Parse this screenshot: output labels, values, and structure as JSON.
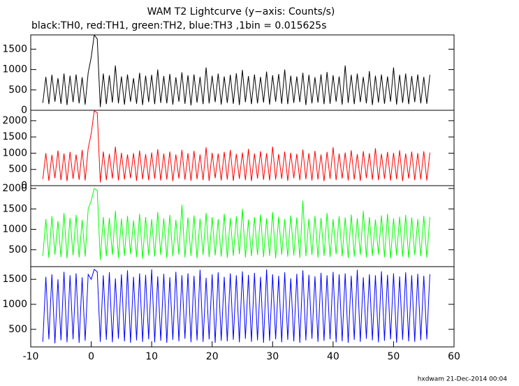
{
  "chart_data": {
    "type": "line",
    "title": "WAM T2 Lightcurve (y−axis: Counts/s)",
    "subtitle": "black:TH0, red:TH1, green:TH2, blue:TH3 ,1bin = 0.015625s",
    "footer": "hxdwam 21-Dec-2014 00:04",
    "xlim": [
      -10,
      60
    ],
    "xticks": [
      -10,
      0,
      10,
      20,
      30,
      40,
      50,
      60
    ],
    "x": [
      -8,
      -7.5,
      -7,
      -6.5,
      -6,
      -5.5,
      -5,
      -4.5,
      -4,
      -3.5,
      -3,
      -2.5,
      -2,
      -1.5,
      -1,
      -0.5,
      0,
      0.5,
      1,
      1.5,
      2,
      2.5,
      3,
      3.5,
      4,
      4.5,
      5,
      5.5,
      6,
      6.5,
      7,
      7.5,
      8,
      8.5,
      9,
      9.5,
      10,
      10.5,
      11,
      11.5,
      12,
      12.5,
      13,
      13.5,
      14,
      14.5,
      15,
      15.5,
      16,
      16.5,
      17,
      17.5,
      18,
      18.5,
      19,
      19.5,
      20,
      20.5,
      21,
      21.5,
      22,
      22.5,
      23,
      23.5,
      24,
      24.5,
      25,
      25.5,
      26,
      26.5,
      27,
      27.5,
      28,
      28.5,
      29,
      29.5,
      30,
      30.5,
      31,
      31.5,
      32,
      32.5,
      33,
      33.5,
      34,
      34.5,
      35,
      35.5,
      36,
      36.5,
      37,
      37.5,
      38,
      38.5,
      39,
      39.5,
      40,
      40.5,
      41,
      41.5,
      42,
      42.5,
      43,
      43.5,
      44,
      44.5,
      45,
      45.5,
      46,
      46.5,
      47,
      47.5,
      48,
      48.5,
      49,
      49.5,
      50,
      50.5,
      51,
      51.5,
      52,
      52.5,
      53,
      53.5,
      54,
      54.5,
      55,
      55.5,
      56
    ],
    "panels": [
      {
        "ylim": [
          0,
          1850
        ],
        "yticks": [
          0,
          500,
          1000,
          1500
        ],
        "series": [
          {
            "color": "#000000",
            "values": [
              180,
              820,
              150,
              870,
              210,
              790,
              160,
              900,
              130,
              850,
              200,
              880,
              170,
              810,
              140,
              920,
              1300,
              1850,
              1750,
              80,
              900,
              150,
              860,
              190,
              1100,
              170,
              830,
              140,
              880,
              210,
              790,
              160,
              920,
              130,
              850,
              200,
              870,
              150,
              1000,
              180,
              840,
              170,
              890,
              140,
              810,
              210,
              930,
              160,
              860,
              120,
              880,
              190,
              820,
              150,
              1050,
              170,
              850,
              200,
              900,
              140,
              830,
              180,
              870,
              160,
              910,
              130,
              990,
              200,
              840,
              150,
              880,
              170,
              820,
              190,
              950,
              140,
              860,
              210,
              890,
              160,
              1000,
              150,
              850,
              180,
              830,
              200,
              920,
              130,
              870,
              170,
              810,
              190,
              880,
              150,
              940,
              160,
              860,
              210,
              830,
              140,
              1100,
              180,
              870,
              150,
              900,
              200,
              820,
              170,
              960,
              130,
              850,
              190,
              880,
              160,
              830,
              210,
              1050,
              140,
              870,
              180,
              900,
              150,
              840,
              200,
              880,
              170,
              820,
              160,
              870
            ]
          }
        ]
      },
      {
        "ylim": [
          0,
          2320
        ],
        "yticks": [
          0,
          500,
          1000,
          1500,
          2000
        ],
        "series": [
          {
            "color": "#ff0000",
            "values": [
              200,
              1000,
              150,
              950,
              230,
              1080,
              170,
              990,
              140,
              1040,
              210,
              960,
              180,
              1100,
              160,
              1150,
              1600,
              2300,
              2250,
              100,
              1050,
              170,
              980,
              220,
              1200,
              160,
              1010,
              190,
              960,
              230,
              1000,
              150,
              1080,
              200,
              970,
              170,
              1020,
              210,
              1120,
              160,
              990,
              190,
              1050,
              140,
              960,
              220,
              1100,
              180,
              1000,
              150,
              1070,
              200,
              960,
              170,
              1180,
              150,
              1010,
              230,
              990,
              160,
              1040,
              190,
              1100,
              150,
              980,
              210,
              1020,
              170,
              1130,
              140,
              990,
              220,
              1060,
              180,
              1000,
              160,
              1200,
              190,
              970,
              210,
              1050,
              150,
              1010,
              230,
              980,
              170,
              1110,
              200,
              1000,
              160,
              1070,
              190,
              960,
              140,
              1040,
              210,
              1180,
              170,
              990,
              220,
              1020,
              160,
              1090,
              190,
              970,
              150,
              1060,
              230,
              1000,
              180,
              1150,
              170,
              980,
              210,
              1040,
              160,
              1010,
              200,
              1090,
              140,
              990,
              220,
              1050,
              170,
              1000,
              190,
              1060,
              160,
              1020
            ]
          }
        ]
      },
      {
        "ylim": [
          86,
          2069
        ],
        "yticks": [
          500,
          1000,
          1500,
          2000
        ],
        "series": [
          {
            "color": "#00ff00",
            "values": [
              350,
              1250,
              300,
              1320,
              380,
              1200,
              320,
              1400,
              290,
              1280,
              360,
              1350,
              310,
              1230,
              330,
              1500,
              1700,
              2000,
              1950,
              250,
              1300,
              340,
              1280,
              370,
              1450,
              300,
              1260,
              350,
              1330,
              390,
              1220,
              320,
              1380,
              280,
              1300,
              360,
              1250,
              330,
              1420,
              370,
              1270,
              300,
              1350,
              340,
              1230,
              380,
              1600,
              310,
              1290,
              350,
              1340,
              290,
              1260,
              370,
              1400,
              320,
              1300,
              360,
              1250,
              330,
              1380,
              300,
              1280,
              350,
              1320,
              390,
              1500,
              310,
              1240,
              340,
              1300,
              370,
              1360,
              320,
              1270,
              350,
              1420,
              290,
              1310,
              380,
              1250,
              330,
              1340,
              360,
              1290,
              300,
              1700,
              340,
              1260,
              370,
              1330,
              310,
              1280,
              350,
              1400,
              320,
              1250,
              390,
              1320,
              340,
              1290,
              300,
              1360,
              330,
              1270,
              370,
              1450,
              310,
              1300,
              350,
              1240,
              380,
              1340,
              320,
              1380,
              290,
              1270,
              360,
              1310,
              330,
              1350,
              300,
              1290,
              370,
              1250,
              340,
              1330,
              310,
              1300
            ]
          }
        ]
      },
      {
        "ylim": [
          148,
          1754
        ],
        "yticks": [
          500,
          1000,
          1500
        ],
        "series": [
          {
            "color": "#0000ff",
            "values": [
              250,
              1550,
              300,
              1600,
              220,
              1500,
              280,
              1650,
              240,
              1580,
              300,
              1620,
              230,
              1540,
              270,
              1600,
              1500,
              1700,
              1650,
              250,
              1580,
              290,
              1640,
              240,
              1520,
              310,
              1600,
              260,
              1680,
              230,
              1550,
              280,
              1620,
              250,
              1590,
              300,
              1700,
              240,
              1560,
              270,
              1610,
              230,
              1540,
              290,
              1650,
              260,
              1580,
              310,
              1620,
              240,
              1570,
              280,
              1690,
              250,
              1530,
              300,
              1600,
              230,
              1640,
              270,
              1550,
              260,
              1620,
              290,
              1580,
              240,
              1660,
              310,
              1590,
              250,
              1630,
              280,
              1550,
              230,
              1700,
              270,
              1600,
              300,
              1570,
              240,
              1640,
              290,
              1520,
              260,
              1610,
              230,
              1680,
              280,
              1590,
              310,
              1560,
              250,
              1630,
              270,
              1580,
              300,
              1650,
              240,
              1600,
              260,
              1620,
              230,
              1570,
              290,
              1690,
              250,
              1540,
              310,
              1600,
              280,
              1580,
              240,
              1660,
              270,
              1590,
              300,
              1620,
              230,
              1560,
              290,
              1640,
              260,
              1580,
              250,
              1610,
              280,
              1570,
              300,
              1600
            ]
          }
        ]
      }
    ]
  }
}
